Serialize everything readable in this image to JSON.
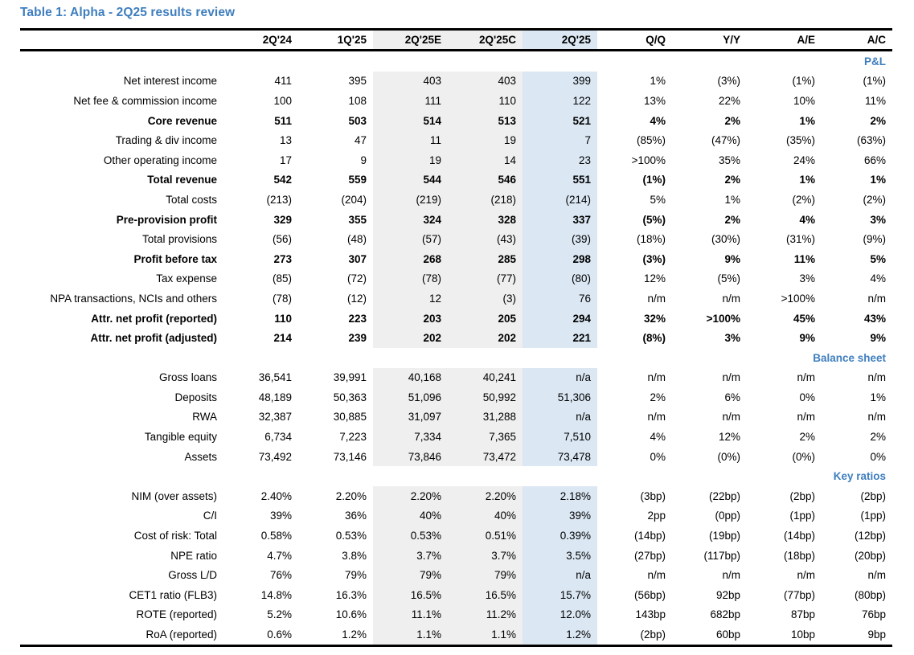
{
  "title": "Table 1: Alpha - 2Q25 results review",
  "colors": {
    "accent_blue": "#3E7EBE",
    "band_gray": "#EFEFEF",
    "band_blue": "#DBE8F4",
    "text": "#000000",
    "background": "#FFFFFF"
  },
  "table": {
    "columns": [
      "",
      "2Q'24",
      "1Q'25",
      "2Q'25E",
      "2Q'25C",
      "2Q'25",
      "Q/Q",
      "Y/Y",
      "A/E",
      "A/C"
    ],
    "highlight": {
      "gray_columns": [
        "2Q'25E",
        "2Q'25C"
      ],
      "blue_columns": [
        "2Q'25"
      ]
    },
    "sections": [
      {
        "name": "P&L",
        "rows": [
          {
            "label": "Net interest income",
            "bold": false,
            "values": [
              "411",
              "395",
              "403",
              "403",
              "399",
              "1%",
              "(3%)",
              "(1%)",
              "(1%)"
            ]
          },
          {
            "label": "Net fee & commission income",
            "bold": false,
            "values": [
              "100",
              "108",
              "111",
              "110",
              "122",
              "13%",
              "22%",
              "10%",
              "11%"
            ]
          },
          {
            "label": "Core revenue",
            "bold": true,
            "values": [
              "511",
              "503",
              "514",
              "513",
              "521",
              "4%",
              "2%",
              "1%",
              "2%"
            ]
          },
          {
            "label": "Trading & div income",
            "bold": false,
            "values": [
              "13",
              "47",
              "11",
              "19",
              "7",
              "(85%)",
              "(47%)",
              "(35%)",
              "(63%)"
            ]
          },
          {
            "label": "Other operating income",
            "bold": false,
            "values": [
              "17",
              "9",
              "19",
              "14",
              "23",
              ">100%",
              "35%",
              "24%",
              "66%"
            ]
          },
          {
            "label": "Total revenue",
            "bold": true,
            "values": [
              "542",
              "559",
              "544",
              "546",
              "551",
              "(1%)",
              "2%",
              "1%",
              "1%"
            ]
          },
          {
            "label": "Total costs",
            "bold": false,
            "values": [
              "(213)",
              "(204)",
              "(219)",
              "(218)",
              "(214)",
              "5%",
              "1%",
              "(2%)",
              "(2%)"
            ]
          },
          {
            "label": "Pre-provision profit",
            "bold": true,
            "values": [
              "329",
              "355",
              "324",
              "328",
              "337",
              "(5%)",
              "2%",
              "4%",
              "3%"
            ]
          },
          {
            "label": "Total provisions",
            "bold": false,
            "values": [
              "(56)",
              "(48)",
              "(57)",
              "(43)",
              "(39)",
              "(18%)",
              "(30%)",
              "(31%)",
              "(9%)"
            ]
          },
          {
            "label": "Profit before tax",
            "bold": true,
            "values": [
              "273",
              "307",
              "268",
              "285",
              "298",
              "(3%)",
              "9%",
              "11%",
              "5%"
            ]
          },
          {
            "label": "Tax expense",
            "bold": false,
            "values": [
              "(85)",
              "(72)",
              "(78)",
              "(77)",
              "(80)",
              "12%",
              "(5%)",
              "3%",
              "4%"
            ]
          },
          {
            "label": "NPA transactions, NCIs and others",
            "bold": false,
            "values": [
              "(78)",
              "(12)",
              "12",
              "(3)",
              "76",
              "n/m",
              "n/m",
              ">100%",
              "n/m"
            ]
          },
          {
            "label": "Attr. net profit (reported)",
            "bold": true,
            "values": [
              "110",
              "223",
              "203",
              "205",
              "294",
              "32%",
              ">100%",
              "45%",
              "43%"
            ]
          },
          {
            "label": "Attr. net profit (adjusted)",
            "bold": true,
            "values": [
              "214",
              "239",
              "202",
              "202",
              "221",
              "(8%)",
              "3%",
              "9%",
              "9%"
            ]
          }
        ]
      },
      {
        "name": "Balance sheet",
        "rows": [
          {
            "label": "Gross loans",
            "bold": false,
            "values": [
              "36,541",
              "39,991",
              "40,168",
              "40,241",
              "n/a",
              "n/m",
              "n/m",
              "n/m",
              "n/m"
            ]
          },
          {
            "label": "Deposits",
            "bold": false,
            "values": [
              "48,189",
              "50,363",
              "51,096",
              "50,992",
              "51,306",
              "2%",
              "6%",
              "0%",
              "1%"
            ]
          },
          {
            "label": "RWA",
            "bold": false,
            "values": [
              "32,387",
              "30,885",
              "31,097",
              "31,288",
              "n/a",
              "n/m",
              "n/m",
              "n/m",
              "n/m"
            ]
          },
          {
            "label": "Tangible equity",
            "bold": false,
            "values": [
              "6,734",
              "7,223",
              "7,334",
              "7,365",
              "7,510",
              "4%",
              "12%",
              "2%",
              "2%"
            ]
          },
          {
            "label": "Assets",
            "bold": false,
            "values": [
              "73,492",
              "73,146",
              "73,846",
              "73,472",
              "73,478",
              "0%",
              "(0%)",
              "(0%)",
              "0%"
            ]
          }
        ]
      },
      {
        "name": "Key ratios",
        "rows": [
          {
            "label": "NIM (over assets)",
            "bold": false,
            "values": [
              "2.40%",
              "2.20%",
              "2.20%",
              "2.20%",
              "2.18%",
              "(3bp)",
              "(22bp)",
              "(2bp)",
              "(2bp)"
            ]
          },
          {
            "label": "C/I",
            "bold": false,
            "values": [
              "39%",
              "36%",
              "40%",
              "40%",
              "39%",
              "2pp",
              "(0pp)",
              "(1pp)",
              "(1pp)"
            ]
          },
          {
            "label": "Cost of risk: Total",
            "bold": false,
            "values": [
              "0.58%",
              "0.53%",
              "0.53%",
              "0.51%",
              "0.39%",
              "(14bp)",
              "(19bp)",
              "(14bp)",
              "(12bp)"
            ]
          },
          {
            "label": "NPE ratio",
            "bold": false,
            "values": [
              "4.7%",
              "3.8%",
              "3.7%",
              "3.7%",
              "3.5%",
              "(27bp)",
              "(117bp)",
              "(18bp)",
              "(20bp)"
            ]
          },
          {
            "label": "Gross L/D",
            "bold": false,
            "values": [
              "76%",
              "79%",
              "79%",
              "79%",
              "n/a",
              "n/m",
              "n/m",
              "n/m",
              "n/m"
            ]
          },
          {
            "label": "CET1 ratio (FLB3)",
            "bold": false,
            "values": [
              "14.8%",
              "16.3%",
              "16.5%",
              "16.5%",
              "15.7%",
              "(56bp)",
              "92bp",
              "(77bp)",
              "(80bp)"
            ]
          },
          {
            "label": "ROTE (reported)",
            "bold": false,
            "values": [
              "5.2%",
              "10.6%",
              "11.1%",
              "11.2%",
              "12.0%",
              "143bp",
              "682bp",
              "87bp",
              "76bp"
            ]
          },
          {
            "label": "RoA (reported)",
            "bold": false,
            "values": [
              "0.6%",
              "1.2%",
              "1.1%",
              "1.1%",
              "1.2%",
              "(2bp)",
              "60bp",
              "10bp",
              "9bp"
            ]
          }
        ]
      }
    ]
  }
}
